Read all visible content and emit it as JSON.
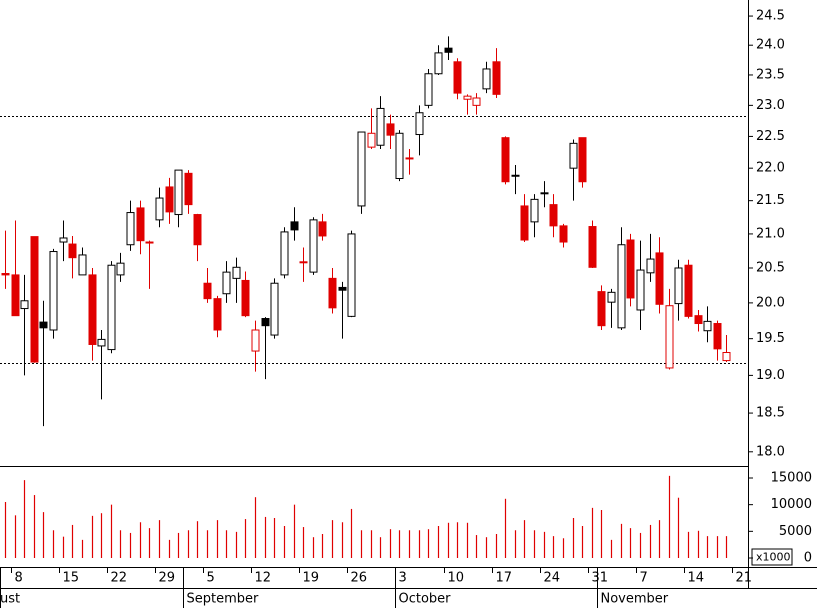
{
  "chart_data": {
    "type": "candlestick",
    "log_y": true,
    "ylim": [
      17.82,
      24.78
    ],
    "yticks": [
      {
        "value": 18,
        "label": "18.0"
      },
      18.5,
      {
        "value": 19,
        "label": "19.0"
      },
      19.5,
      {
        "value": 20,
        "label": "20.0"
      },
      20.5,
      {
        "value": 21,
        "label": "21.0"
      },
      21.5,
      {
        "value": 22,
        "label": "22.0"
      },
      22.5,
      {
        "value": 23,
        "label": "23.0"
      },
      23.5,
      {
        "value": 24,
        "label": "24.0"
      },
      24.5
    ],
    "hlines": [
      22.83,
      19.17
    ],
    "colors": {
      "up": "#000000",
      "down": "#e00000"
    },
    "open": [
      20.42,
      20.4,
      19.92,
      20.96,
      19.73,
      19.62,
      20.88,
      20.85,
      20.4,
      20.4,
      19.4,
      19.35,
      20.4,
      20.84,
      21.39,
      20.88,
      21.21,
      21.71,
      21.29,
      21.92,
      21.29,
      20.28,
      20.06,
      20.13,
      20.35,
      20.32,
      19.33,
      19.78,
      19.55,
      20.4,
      21.18,
      20.59,
      20.44,
      21.18,
      20.35,
      20.22,
      19.81,
      21.42,
      22.33,
      22.36,
      22.7,
      21.84,
      22.16,
      22.53,
      23.0,
      23.52,
      23.95,
      23.72,
      23.1,
      23.0,
      23.27,
      23.72,
      22.48,
      21.89,
      21.42,
      21.18,
      21.62,
      21.44,
      21.12,
      22.0,
      22.48,
      21.11,
      20.16,
      20.01,
      19.65,
      20.91,
      19.9,
      20.43,
      20.72,
      19.1,
      19.99,
      20.54,
      19.82,
      19.61,
      19.71,
      19.2
    ],
    "high": [
      21.05,
      21.2,
      20.4,
      20.96,
      20.03,
      20.78,
      21.2,
      20.97,
      20.8,
      20.5,
      19.62,
      20.6,
      20.72,
      21.5,
      21.5,
      20.9,
      21.7,
      21.85,
      21.97,
      21.97,
      21.3,
      20.5,
      20.1,
      20.6,
      20.65,
      20.45,
      19.75,
      19.8,
      20.35,
      21.1,
      21.4,
      20.8,
      21.25,
      21.3,
      20.5,
      20.3,
      21.05,
      22.57,
      22.95,
      23.15,
      22.85,
      22.6,
      22.3,
      23.0,
      23.6,
      24.0,
      24.15,
      23.78,
      23.18,
      23.2,
      23.72,
      23.95,
      22.5,
      22.05,
      21.6,
      21.6,
      21.8,
      21.6,
      21.15,
      22.45,
      22.48,
      21.2,
      20.25,
      20.2,
      21.1,
      21.0,
      20.9,
      21.0,
      20.95,
      20.2,
      20.62,
      20.62,
      19.9,
      19.95,
      19.75,
      19.55
    ],
    "low": [
      20.2,
      19.82,
      19.0,
      19.17,
      18.33,
      19.5,
      20.6,
      20.35,
      20.4,
      19.2,
      18.68,
      19.3,
      20.3,
      20.75,
      20.7,
      20.2,
      21.1,
      21.15,
      21.1,
      21.3,
      20.6,
      20.0,
      19.52,
      20.0,
      20.0,
      19.8,
      19.05,
      18.95,
      19.5,
      20.35,
      20.9,
      20.3,
      20.4,
      20.9,
      19.85,
      19.5,
      19.8,
      21.3,
      22.3,
      22.3,
      22.3,
      21.8,
      21.9,
      22.2,
      22.95,
      23.5,
      23.75,
      23.1,
      22.85,
      22.85,
      23.2,
      23.12,
      21.75,
      21.6,
      20.88,
      20.95,
      21.4,
      20.95,
      20.8,
      21.5,
      21.7,
      20.5,
      19.62,
      19.65,
      19.62,
      19.95,
      19.62,
      20.3,
      19.85,
      19.08,
      19.75,
      19.78,
      19.6,
      19.45,
      19.2,
      19.18
    ],
    "close": [
      20.4,
      19.82,
      20.03,
      19.18,
      19.65,
      20.74,
      20.94,
      20.65,
      20.69,
      19.42,
      19.49,
      20.54,
      20.57,
      21.32,
      20.9,
      20.88,
      21.54,
      21.33,
      21.97,
      21.44,
      20.84,
      20.06,
      19.62,
      20.44,
      20.51,
      19.82,
      19.62,
      19.68,
      20.28,
      21.03,
      21.06,
      20.59,
      21.21,
      20.97,
      19.93,
      20.18,
      21.0,
      22.57,
      22.55,
      22.95,
      22.52,
      22.55,
      22.16,
      22.88,
      23.52,
      23.87,
      23.88,
      23.2,
      23.15,
      23.12,
      23.6,
      23.18,
      21.79,
      21.89,
      20.91,
      21.52,
      21.61,
      21.12,
      20.88,
      22.39,
      21.79,
      20.51,
      19.68,
      20.15,
      20.84,
      20.07,
      20.47,
      20.63,
      19.98,
      19.96,
      20.5,
      19.81,
      19.71,
      19.74,
      19.36,
      19.31
    ],
    "volume": {
      "values": [
        10500,
        8000,
        14600,
        11800,
        8600,
        5200,
        4000,
        6200,
        3400,
        7900,
        8400,
        10000,
        5200,
        4700,
        6700,
        5600,
        7100,
        3400,
        4700,
        5200,
        6900,
        5200,
        7100,
        5200,
        4900,
        7300,
        11400,
        7700,
        7500,
        6000,
        10000,
        5800,
        3900,
        4500,
        7100,
        6700,
        9200,
        5200,
        5200,
        3900,
        5400,
        5200,
        5200,
        5200,
        5400,
        6000,
        6600,
        6700,
        6600,
        4300,
        3900,
        4500,
        11100,
        5200,
        7100,
        5200,
        4900,
        4100,
        3700,
        7500,
        6000,
        9400,
        9000,
        3400,
        6400,
        5600,
        4700,
        6200,
        7100,
        15400,
        11300,
        4900,
        5100,
        4100,
        4100,
        4100
      ],
      "color": "#e00000",
      "ylim": [
        0,
        17060
      ],
      "yticks": [
        0,
        5000,
        10000,
        15000
      ],
      "unit_label": "x1000"
    },
    "xticks": [
      {
        "value": 1,
        "label": "8"
      },
      {
        "value": 6,
        "label": "15"
      },
      {
        "value": 11,
        "label": "22"
      },
      {
        "value": 16,
        "label": "29"
      },
      {
        "value": 21,
        "label": "5"
      },
      {
        "value": 26,
        "label": "12"
      },
      {
        "value": 31,
        "label": "19"
      },
      {
        "value": 36,
        "label": "26"
      },
      {
        "value": 41,
        "label": "3"
      },
      {
        "value": 46,
        "label": "10"
      },
      {
        "value": 51,
        "label": "17"
      },
      {
        "value": 56,
        "label": "24"
      },
      {
        "value": 61,
        "label": "31"
      },
      {
        "value": 66,
        "label": "7"
      },
      {
        "value": 71,
        "label": "14"
      },
      {
        "value": 76,
        "label": "21"
      }
    ],
    "months": [
      {
        "value": 0,
        "label": "ust"
      },
      {
        "value": 19,
        "label": "September"
      },
      {
        "value": 41,
        "label": "October"
      },
      {
        "value": 62,
        "label": "November"
      }
    ]
  }
}
